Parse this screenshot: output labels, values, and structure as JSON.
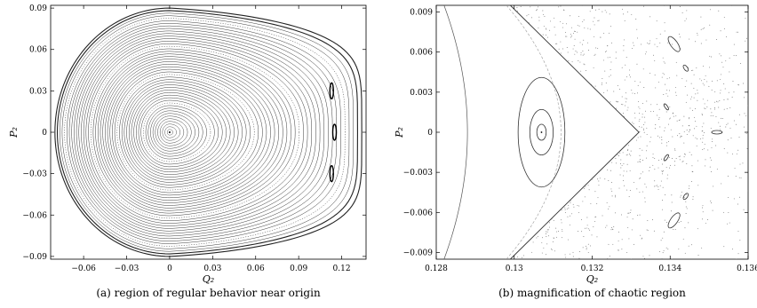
{
  "chart_data": [
    {
      "type": "scatter",
      "subtype": "poincare-section",
      "xlabel": "Q₂",
      "ylabel": "P₂",
      "xlim": [
        -0.083,
        0.137
      ],
      "ylim": [
        -0.092,
        0.092
      ],
      "xticks": [
        -0.06,
        -0.03,
        0,
        0.03,
        0.06,
        0.09,
        0.12
      ],
      "xtick_labels": [
        "−0.06",
        "−0.03",
        "0",
        "0.03",
        "0.06",
        "0.09",
        "0.12"
      ],
      "yticks": [
        -0.09,
        -0.06,
        -0.03,
        0,
        0.03,
        0.06,
        0.09
      ],
      "ytick_labels": [
        "−0.09",
        "−0.06",
        "−0.03",
        "0",
        "0.03",
        "0.06",
        "0.09"
      ],
      "caption": "(a) region of regular behavior near origin",
      "features": {
        "center": [
          0,
          0
        ],
        "separatrix_x_left": -0.08,
        "separatrix_x_cusp": 0.134,
        "separatrix_p_max": 0.09,
        "num_invariant_curves": 48
      }
    },
    {
      "type": "scatter",
      "subtype": "poincare-section",
      "xlabel": "Q₂",
      "ylabel": "P₂",
      "xlim": [
        0.128,
        0.136
      ],
      "ylim": [
        -0.0095,
        0.0095
      ],
      "xticks": [
        0.128,
        0.13,
        0.132,
        0.134,
        0.136
      ],
      "xtick_labels": [
        "0.128",
        "0.13",
        "0.132",
        "0.134",
        "0.136"
      ],
      "yticks": [
        -0.009,
        -0.006,
        -0.003,
        0,
        0.003,
        0.006,
        0.009
      ],
      "ytick_labels": [
        "−0.009",
        "−0.006",
        "−0.003",
        "0",
        "0.003",
        "0.006",
        "0.009"
      ],
      "caption": "(b) magnification of chaotic region",
      "features": {
        "island_center": [
          0.1307,
          0
        ],
        "separatrix_cusp_x": 0.1332,
        "outer_island_center": [
          0.1352,
          0
        ]
      }
    }
  ]
}
